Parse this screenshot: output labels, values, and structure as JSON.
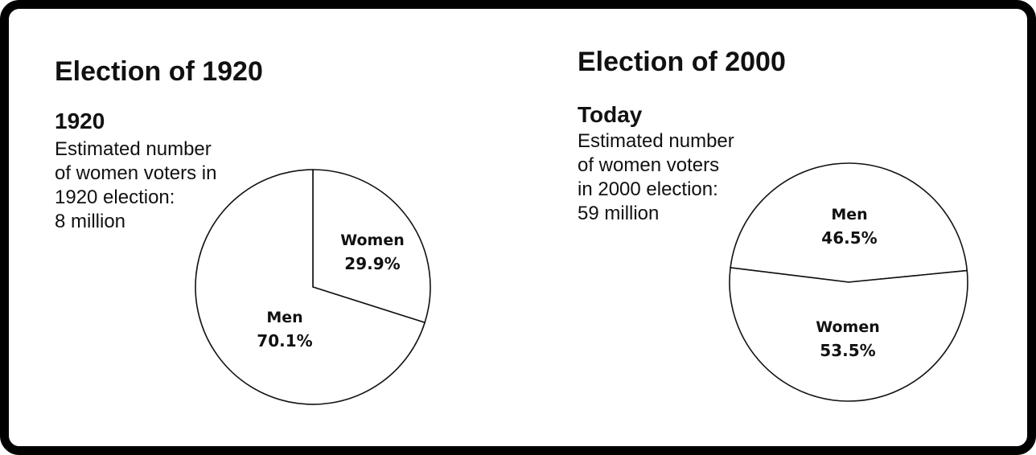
{
  "chart_data": [
    {
      "type": "pie",
      "title": "Election of 1920",
      "subtitle": "1920",
      "note_lines": [
        "Estimated number",
        "of women voters in",
        "1920 election:",
        "8 million"
      ],
      "slices": [
        {
          "label": "Women",
          "value": 29.9,
          "value_label": "29.9%"
        },
        {
          "label": "Men",
          "value": 70.1,
          "value_label": "70.1%"
        }
      ],
      "start_angle_deg": 0,
      "slice_fill": "#ffffff",
      "stroke_color": "#111111"
    },
    {
      "type": "pie",
      "title": "Election of 2000",
      "subtitle": "Today",
      "note_lines": [
        "Estimated number",
        "of women voters",
        "in 2000 election:",
        "59 million"
      ],
      "slices": [
        {
          "label": "Men",
          "value": 46.5,
          "value_label": "46.5%"
        },
        {
          "label": "Women",
          "value": 53.5,
          "value_label": "53.5%"
        }
      ],
      "start_angle_deg": -83,
      "slice_fill": "#ffffff",
      "stroke_color": "#111111"
    }
  ],
  "colors": {
    "border": "#000000",
    "background": "#ffffff",
    "text": "#111111"
  }
}
